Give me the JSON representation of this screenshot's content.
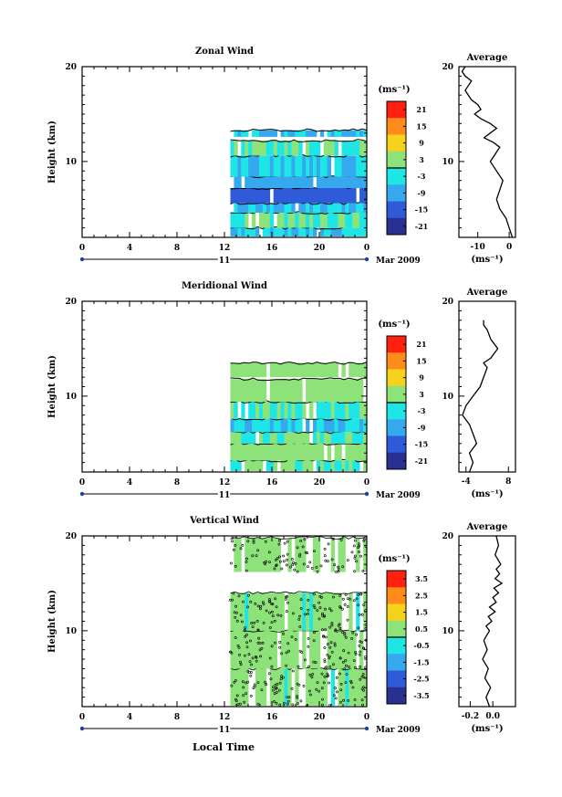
{
  "figure": {
    "xlabel": "Local Time",
    "date_label": "Mar 2009",
    "day_label": "11"
  },
  "chart_data": [
    {
      "type": "heatmap",
      "title": "Zonal Wind",
      "ylabel": "Height (km)",
      "xticks": [
        "0",
        "4",
        "8",
        "12",
        "16",
        "20",
        "0"
      ],
      "yticks": [
        "10",
        "20"
      ],
      "ylim": [
        2,
        20
      ],
      "data_start_hour": 12.5,
      "colorbar": {
        "unit": "(ms⁻¹)",
        "ticks": [
          "21",
          "15",
          "9",
          "3",
          "-3",
          "-9",
          "-15",
          "-21"
        ]
      },
      "layers": [
        {
          "z_from": 2.1,
          "z_to": 3.0,
          "value": -6
        },
        {
          "z_from": 3.0,
          "z_to": 4.6,
          "value": 0
        },
        {
          "z_from": 4.6,
          "z_to": 5.6,
          "value": -6
        },
        {
          "z_from": 5.6,
          "z_to": 7.2,
          "value": -15
        },
        {
          "z_from": 7.2,
          "z_to": 8.4,
          "value": -9
        },
        {
          "z_from": 8.4,
          "z_to": 10.6,
          "value": -6
        },
        {
          "z_from": 10.6,
          "z_to": 12.2,
          "value": 0
        },
        {
          "z_from": 12.6,
          "z_to": 13.3,
          "value": -6
        }
      ],
      "profile": {
        "title": "Average",
        "xlabel": "(ms⁻¹)",
        "xticks": [
          "-10",
          "0"
        ],
        "xlim": [
          -16,
          2
        ],
        "x": [
          1,
          0,
          -1,
          -3,
          -4,
          -3,
          -2,
          -4,
          -6,
          -5,
          -4,
          -3,
          -5,
          -8,
          -6,
          -4,
          -6,
          -9,
          -11,
          -9,
          -10,
          -12,
          -13,
          -14,
          -13,
          -12,
          -14,
          -15,
          -14
        ],
        "y": [
          2,
          3,
          4,
          5,
          6,
          7,
          8,
          9,
          10,
          10.5,
          11,
          11.5,
          12,
          12.5,
          13,
          13.5,
          14,
          14.5,
          15,
          15.5,
          16,
          16.5,
          17,
          17.5,
          18,
          18.5,
          19,
          19.5,
          20
        ]
      }
    },
    {
      "type": "heatmap",
      "title": "Meridional Wind",
      "ylabel": "Height (km)",
      "xticks": [
        "0",
        "4",
        "8",
        "12",
        "16",
        "20",
        "0"
      ],
      "yticks": [
        "10",
        "20"
      ],
      "ylim": [
        2,
        20
      ],
      "data_start_hour": 12.5,
      "colorbar": {
        "unit": "(ms⁻¹)",
        "ticks": [
          "21",
          "15",
          "9",
          "3",
          "-3",
          "-9",
          "-15",
          "-21"
        ]
      },
      "layers": [
        {
          "z_from": 2.1,
          "z_to": 3.2,
          "value": 0
        },
        {
          "z_from": 3.2,
          "z_to": 5.0,
          "value": 3
        },
        {
          "z_from": 5.0,
          "z_to": 6.2,
          "value": 0
        },
        {
          "z_from": 6.2,
          "z_to": 7.6,
          "value": -6
        },
        {
          "z_from": 7.6,
          "z_to": 9.4,
          "value": 0
        },
        {
          "z_from": 9.4,
          "z_to": 11.8,
          "value": 2
        },
        {
          "z_from": 12.0,
          "z_to": 13.5,
          "value": 4
        }
      ],
      "profile": {
        "title": "Average",
        "xlabel": "(ms⁻¹)",
        "xticks": [
          "-4",
          "8"
        ],
        "xlim": [
          -6,
          10
        ],
        "x": [
          -3,
          -2,
          -3,
          -1,
          -2,
          -3,
          -5,
          -4,
          -2,
          -1,
          0,
          1,
          2,
          1,
          3,
          5,
          4,
          3,
          2,
          1,
          1
        ],
        "y": [
          2,
          3,
          4,
          5,
          6,
          7,
          8,
          9,
          10,
          10.5,
          11,
          12,
          13,
          13.5,
          14,
          15,
          15.5,
          16,
          17,
          17.5,
          18
        ]
      }
    },
    {
      "type": "heatmap",
      "title": "Vertical Wind",
      "ylabel": "Height (km)",
      "xticks": [
        "0",
        "4",
        "8",
        "12",
        "16",
        "20",
        "0"
      ],
      "yticks": [
        "10",
        "20"
      ],
      "ylim": [
        2,
        20
      ],
      "data_start_hour": 12.5,
      "colorbar": {
        "unit": "(ms⁻¹)",
        "ticks": [
          "3.5",
          "2.5",
          "1.5",
          "0.5",
          "-0.5",
          "-1.5",
          "-2.5",
          "-3.5"
        ]
      },
      "layers": [
        {
          "z_from": 2.1,
          "z_to": 6.0,
          "value": 0.2
        },
        {
          "z_from": 6.0,
          "z_to": 10.0,
          "value": 0.3
        },
        {
          "z_from": 10.0,
          "z_to": 14.0,
          "value": 0.2
        },
        {
          "z_from": 16.2,
          "z_to": 19.8,
          "value": 0.3
        }
      ],
      "profile": {
        "title": "Average",
        "xlabel": "(ms⁻¹)",
        "xticks": [
          "-0.2",
          "0.0"
        ],
        "xlim": [
          -0.3,
          0.2
        ],
        "x": [
          -0.03,
          -0.06,
          -0.02,
          -0.07,
          -0.04,
          -0.09,
          -0.05,
          -0.08,
          -0.03,
          -0.06,
          -0.01,
          -0.04,
          0.02,
          -0.03,
          0.03,
          0.0,
          0.05,
          0.01,
          0.08,
          0.02,
          0.06,
          0.03,
          0.07,
          0.02,
          0.05,
          0.03
        ],
        "y": [
          2,
          3,
          4,
          5,
          6,
          7,
          8,
          9,
          10,
          10.5,
          11,
          11.5,
          12,
          12.5,
          13,
          13.5,
          14,
          14.5,
          15,
          15.5,
          16,
          16.5,
          17,
          18,
          19,
          20
        ]
      }
    }
  ]
}
